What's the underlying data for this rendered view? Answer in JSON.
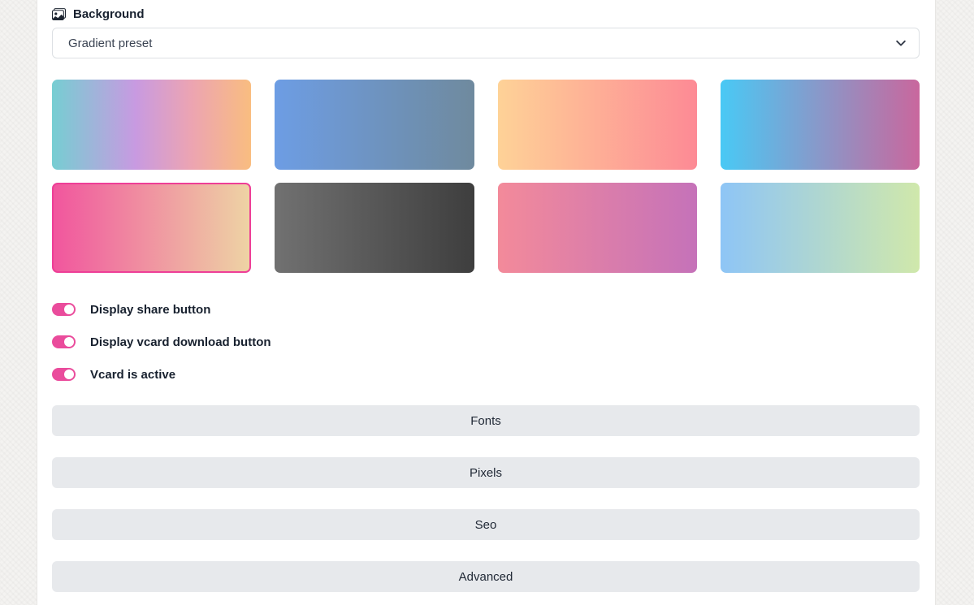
{
  "background": {
    "label": "Background",
    "selected_option": "Gradient preset"
  },
  "gradient_presets": {
    "selected_index": 4,
    "items": [
      {
        "name": "teal-lavender-pink-peach",
        "stops": [
          "#76ced2 0%",
          "#c89ae1 42%",
          "#eca4b2 70%",
          "#f9bd80 100%"
        ]
      },
      {
        "name": "blue-slate",
        "stops": [
          "#6d9de4 0%",
          "#6f8a9e 100%"
        ]
      },
      {
        "name": "peach-salmon",
        "stops": [
          "#fed297 0%",
          "#fd8a95 100%"
        ]
      },
      {
        "name": "sky-magenta",
        "stops": [
          "#49c9f5 0%",
          "#c9679d 100%"
        ]
      },
      {
        "name": "hotpink-cream",
        "stops": [
          "#f1569e 0%",
          "#eed3a4 100%"
        ]
      },
      {
        "name": "gray-charcoal",
        "stops": [
          "#717171 0%",
          "#3e3e3e 100%"
        ]
      },
      {
        "name": "salmon-orchid",
        "stops": [
          "#f38a9a 0%",
          "#c572b9 100%"
        ]
      },
      {
        "name": "blue-green",
        "stops": [
          "#8ec5f6 0%",
          "#d0e8ab 100%"
        ]
      }
    ]
  },
  "toggles": [
    {
      "label": "Display share button",
      "state": "on"
    },
    {
      "label": "Display vcard download button",
      "state": "on"
    },
    {
      "label": "Vcard is active",
      "state": "on"
    }
  ],
  "accordions": [
    {
      "label": "Fonts"
    },
    {
      "label": "Pixels"
    },
    {
      "label": "Seo"
    },
    {
      "label": "Advanced"
    }
  ],
  "colors": {
    "accent_pink": "#ea4c9c",
    "selected_swatch_border": "#ee3e97"
  }
}
